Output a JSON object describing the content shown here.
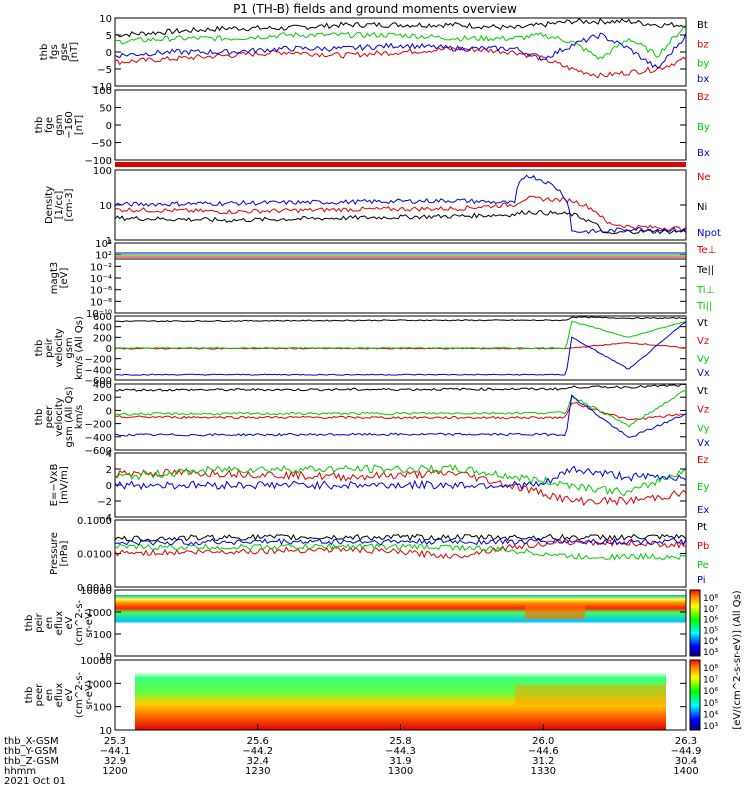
{
  "title": "P1 (TH-B) fields and ground moments overview",
  "colors": {
    "black": "#000000",
    "red": "#e00000",
    "green": "#00cc00",
    "blue": "#0000e0"
  },
  "panels": [
    {
      "id": "fgs",
      "ylabel": [
        "thb",
        "fgs",
        "gse",
        "[nT]"
      ],
      "ticks": [
        "10",
        "5",
        "0",
        "−5",
        "−10"
      ],
      "ylim": [
        -10,
        10
      ],
      "legend": [
        [
          "Bt",
          "black"
        ],
        [
          "bz",
          "red"
        ],
        [
          "by",
          "green"
        ],
        [
          "bx",
          "blue"
        ]
      ]
    },
    {
      "id": "fge",
      "ylabel": [
        "thb",
        "fge",
        "gsm",
        "−160",
        "[nT]"
      ],
      "ticks": [
        "100",
        "50",
        "0",
        "−50",
        "−100"
      ],
      "ylim": [
        -130,
        100
      ],
      "legend": [
        [
          "Bz",
          "red"
        ],
        [
          "By",
          "green"
        ],
        [
          "Bx",
          "blue"
        ]
      ]
    },
    {
      "id": "density",
      "ylabel": [
        "Density",
        "[1/cc]",
        "[cm-3]"
      ],
      "ticks": [
        "100",
        "10",
        "1"
      ],
      "log": true,
      "ylim": [
        1,
        300
      ],
      "legend": [
        [
          "Ne",
          "red"
        ],
        [
          "Ni",
          "black"
        ],
        [
          "Npot",
          "blue"
        ]
      ]
    },
    {
      "id": "temp",
      "ylabel": [
        "magt3",
        "[eV]"
      ],
      "ticks": [
        "10⁴",
        "10²",
        "10⁻²",
        "10⁻⁴",
        "10⁻⁶",
        "10⁻⁸",
        "10⁻¹⁰"
      ],
      "log": true,
      "legend": [
        [
          "Te⊥",
          "red"
        ],
        [
          "Te||",
          "black"
        ],
        [
          "Ti⊥",
          "green"
        ],
        [
          "Ti||",
          "green"
        ]
      ]
    },
    {
      "id": "peir",
      "ylabel": [
        "thb",
        "peir",
        "velocity",
        "gsm",
        "km/s (All Qs)"
      ],
      "ticks": [
        "600",
        "400",
        "200",
        "0",
        "−200",
        "−400",
        "−600"
      ],
      "ylim": [
        -600,
        600
      ],
      "legend": [
        [
          "Vt",
          "black"
        ],
        [
          "Vz",
          "red"
        ],
        [
          "Vy",
          "green"
        ],
        [
          "Vx",
          "blue"
        ]
      ]
    },
    {
      "id": "peer",
      "ylabel": [
        "thb",
        "peer",
        "velocity",
        "gsm (All Qs)",
        "km/s"
      ],
      "ticks": [
        "400",
        "200",
        "0",
        "−200",
        "−400",
        "−600"
      ],
      "ylim": [
        -600,
        500
      ],
      "legend": [
        [
          "Vt",
          "black"
        ],
        [
          "Vz",
          "red"
        ],
        [
          "Vy",
          "green"
        ],
        [
          "Vx",
          "blue"
        ]
      ]
    },
    {
      "id": "efield",
      "ylabel": [
        "E=−VxB",
        "[mV/m]"
      ],
      "ticks": [
        "4",
        "2",
        "0",
        "−2",
        "−4"
      ],
      "ylim": [
        -4,
        4
      ],
      "legend": [
        [
          "Ez",
          "red"
        ],
        [
          "Ey",
          "green"
        ],
        [
          "Ex",
          "blue"
        ]
      ]
    },
    {
      "id": "pressure",
      "ylabel": [
        "Pressure",
        "[nPa]"
      ],
      "ticks": [
        "0.1000",
        "0.0100",
        "0.0010"
      ],
      "log": true,
      "ylim": [
        0.0003,
        0.15
      ],
      "legend": [
        [
          "Pt",
          "black"
        ],
        [
          "Pb",
          "red"
        ],
        [
          "Pe",
          "green"
        ],
        [
          "Pi",
          "blue"
        ]
      ]
    },
    {
      "id": "ion_spec",
      "ylabel": [
        "thb",
        "peir",
        "en",
        "eflux",
        "eV",
        "(cm^2-s-",
        "sr-eV)"
      ],
      "ticks": [
        "10000",
        "1000",
        "100",
        "10"
      ],
      "log": true,
      "ylim": [
        5,
        30000
      ]
    },
    {
      "id": "elec_spec",
      "ylabel": [
        "thb",
        "peer",
        "en",
        "eflux",
        "eV",
        "(cm^2-s-",
        "sr-eV)"
      ],
      "ticks": [
        "10000",
        "1000",
        "100",
        "10"
      ],
      "log": true,
      "ylim": [
        5,
        30000
      ]
    }
  ],
  "colorbars": [
    {
      "ticks": [
        "10⁸",
        "10⁷",
        "10⁶",
        "10⁵",
        "10⁴",
        "10³"
      ]
    },
    {
      "ticks": [
        "10⁸",
        "10⁷",
        "10⁶",
        "10⁵",
        "10⁴",
        "10³"
      ]
    }
  ],
  "colorbar_label": "[eV/(cm^2-s-sr-eV)] (All Qs)",
  "xaxis": {
    "row_labels": [
      "thb_X-GSM",
      "thb_Y-GSM",
      "thb_Z-GSM",
      "hhmm",
      "2021 Oct 01"
    ],
    "ticks": [
      {
        "x": "25.3",
        "y": "−44.1",
        "z": "32.9",
        "hhmm": "1200"
      },
      {
        "x": "25.6",
        "y": "−44.2",
        "z": "32.4",
        "hhmm": "1230"
      },
      {
        "x": "25.8",
        "y": "−44.3",
        "z": "31.9",
        "hhmm": "1300"
      },
      {
        "x": "26.0",
        "y": "−44.6",
        "z": "31.2",
        "hhmm": "1330"
      },
      {
        "x": "26.3",
        "y": "−44.9",
        "z": "30.4",
        "hhmm": "1400"
      }
    ]
  },
  "chart_data": [
    {
      "type": "line",
      "panel": "fgs",
      "x_range_hhmm": [
        "1200",
        "1400"
      ],
      "ylim": [
        -10,
        10
      ],
      "series": [
        {
          "name": "Bt",
          "x": [
            0,
            0.1,
            0.2,
            0.3,
            0.4,
            0.5,
            0.6,
            0.7,
            0.75,
            0.8,
            0.85,
            0.9,
            0.95,
            1
          ],
          "values": [
            5,
            6,
            7,
            7,
            8,
            8,
            8,
            7,
            8,
            9,
            9,
            9,
            8,
            8
          ]
        },
        {
          "name": "bz",
          "x": [
            0,
            0.1,
            0.2,
            0.3,
            0.4,
            0.5,
            0.6,
            0.7,
            0.75,
            0.8,
            0.85,
            0.9,
            0.95,
            1
          ],
          "values": [
            -3,
            -2,
            -1,
            0,
            -1,
            0,
            1,
            0,
            -2,
            -5,
            -7,
            -6,
            -5,
            -2
          ]
        },
        {
          "name": "by",
          "x": [
            0,
            0.1,
            0.2,
            0.3,
            0.4,
            0.5,
            0.6,
            0.7,
            0.75,
            0.8,
            0.85,
            0.9,
            0.95,
            1
          ],
          "values": [
            3,
            4,
            4,
            5,
            5,
            5,
            4,
            4,
            5,
            3,
            -2,
            4,
            -1,
            8
          ]
        },
        {
          "name": "bx",
          "x": [
            0,
            0.1,
            0.2,
            0.3,
            0.4,
            0.5,
            0.6,
            0.7,
            0.75,
            0.8,
            0.85,
            0.9,
            0.95,
            1
          ],
          "values": [
            -1,
            0,
            0,
            1,
            1,
            2,
            1,
            1,
            -2,
            2,
            5,
            1,
            -5,
            5
          ]
        }
      ]
    },
    {
      "type": "line",
      "panel": "density",
      "log": true,
      "ylim": [
        1,
        300
      ],
      "series": [
        {
          "name": "Ne",
          "x": [
            0,
            0.2,
            0.4,
            0.6,
            0.7,
            0.72,
            0.8,
            0.86,
            0.9,
            1
          ],
          "values": [
            12,
            10,
            12,
            13,
            18,
            30,
            25,
            4,
            3,
            2.5
          ]
        },
        {
          "name": "Ni",
          "x": [
            0,
            0.2,
            0.4,
            0.6,
            0.7,
            0.72,
            0.8,
            0.86,
            0.9,
            1
          ],
          "values": [
            6,
            5,
            6,
            7,
            8,
            10,
            8,
            1.5,
            2,
            2
          ]
        },
        {
          "name": "Npot",
          "x": [
            0,
            0.2,
            0.4,
            0.6,
            0.7,
            0.72,
            0.8,
            0.86,
            0.9,
            1
          ],
          "values": [
            18,
            20,
            22,
            25,
            20,
            200,
            2,
            2,
            2.5,
            2.2
          ]
        }
      ]
    },
    {
      "type": "line",
      "panel": "peir",
      "ylim": [
        -600,
        600
      ],
      "series": [
        {
          "name": "Vt",
          "x": [
            0,
            0.5,
            0.79,
            0.8,
            0.9,
            1
          ],
          "values": [
            500,
            520,
            520,
            580,
            560,
            560
          ]
        },
        {
          "name": "Vz",
          "x": [
            0,
            0.5,
            0.79,
            0.8,
            0.9,
            1
          ],
          "values": [
            -10,
            -10,
            -10,
            0,
            100,
            0
          ]
        },
        {
          "name": "Vy",
          "x": [
            0,
            0.5,
            0.79,
            0.8,
            0.9,
            1
          ],
          "values": [
            0,
            0,
            0,
            500,
            200,
            500
          ]
        },
        {
          "name": "Vx",
          "x": [
            0,
            0.5,
            0.79,
            0.8,
            0.9,
            1
          ],
          "values": [
            -500,
            -500,
            -500,
            200,
            -400,
            500
          ]
        }
      ]
    },
    {
      "type": "line",
      "panel": "peer",
      "ylim": [
        -600,
        500
      ],
      "series": [
        {
          "name": "Vt",
          "x": [
            0,
            0.5,
            0.79,
            0.8,
            0.9,
            1
          ],
          "values": [
            400,
            410,
            420,
            450,
            450,
            480
          ]
        },
        {
          "name": "Vz",
          "x": [
            0,
            0.5,
            0.79,
            0.8,
            0.9,
            1
          ],
          "values": [
            -50,
            -60,
            -60,
            200,
            -100,
            0
          ]
        },
        {
          "name": "Vy",
          "x": [
            0,
            0.5,
            0.79,
            0.8,
            0.9,
            1
          ],
          "values": [
            0,
            10,
            20,
            300,
            -200,
            400
          ]
        },
        {
          "name": "Vx",
          "x": [
            0,
            0.5,
            0.79,
            0.8,
            0.9,
            1
          ],
          "values": [
            -350,
            -340,
            -340,
            300,
            -400,
            0
          ]
        }
      ]
    },
    {
      "type": "line",
      "panel": "efield",
      "ylim": [
        -4,
        4
      ],
      "series": [
        {
          "name": "Ez",
          "x": [
            0,
            0.2,
            0.4,
            0.6,
            0.75,
            0.8,
            0.9,
            1
          ],
          "values": [
            1.5,
            1.5,
            1,
            1.5,
            -1,
            -2,
            -2,
            -1
          ]
        },
        {
          "name": "Ey",
          "x": [
            0,
            0.2,
            0.4,
            0.6,
            0.75,
            0.8,
            0.9,
            1
          ],
          "values": [
            1,
            2,
            2,
            2,
            0.5,
            0,
            -1,
            2
          ]
        },
        {
          "name": "Ex",
          "x": [
            0,
            0.2,
            0.4,
            0.6,
            0.75,
            0.8,
            0.9,
            1
          ],
          "values": [
            0,
            0,
            0,
            0,
            0,
            2,
            1,
            1
          ]
        }
      ]
    },
    {
      "type": "line",
      "panel": "pressure",
      "log": true,
      "ylim": [
        0.0003,
        0.15
      ],
      "series": [
        {
          "name": "Pt",
          "x": [
            0,
            0.2,
            0.4,
            0.6,
            0.8,
            1
          ],
          "values": [
            0.025,
            0.03,
            0.03,
            0.03,
            0.03,
            0.03
          ]
        },
        {
          "name": "Pb",
          "x": [
            0,
            0.2,
            0.4,
            0.6,
            0.8,
            1
          ],
          "values": [
            0.007,
            0.008,
            0.01,
            0.005,
            0.02,
            0.015
          ]
        },
        {
          "name": "Pe",
          "x": [
            0,
            0.2,
            0.4,
            0.6,
            0.8,
            1
          ],
          "values": [
            0.012,
            0.012,
            0.013,
            0.012,
            0.005,
            0.005
          ]
        },
        {
          "name": "Pi",
          "x": [
            0,
            0.2,
            0.4,
            0.6,
            0.8,
            1
          ],
          "values": [
            0.018,
            0.02,
            0.02,
            0.02,
            0.02,
            0.02
          ]
        }
      ]
    }
  ]
}
